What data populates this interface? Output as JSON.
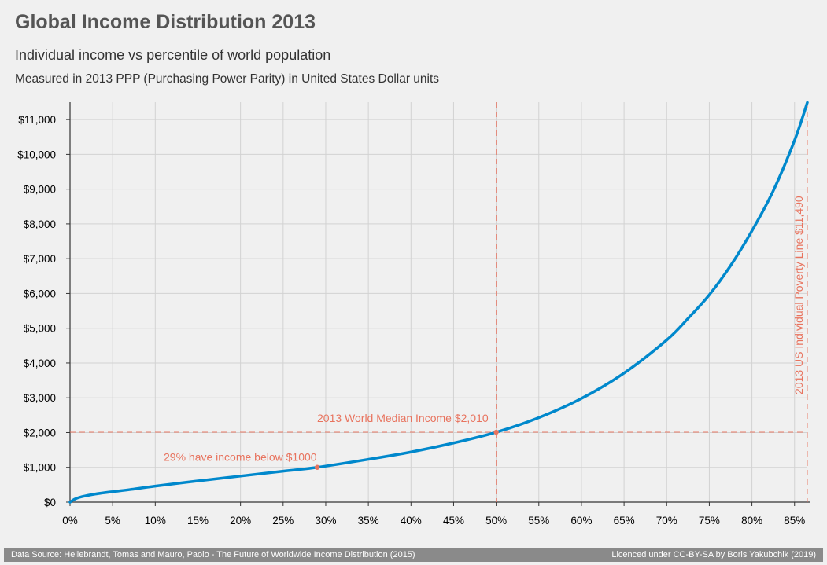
{
  "header": {
    "title": "Global Income Distribution 2013",
    "subtitle": "Individual income vs percentile of world population",
    "subtitle2": "Measured in 2013 PPP (Purchasing Power Parity) in United States Dollar units"
  },
  "footer": {
    "source": "Data Source: Hellebrandt, Tomas and Mauro, Paolo - The Future of Worldwide Income Distribution (2015)",
    "license": "Licenced under CC-BY-SA by Boris Yakubchik (2019)"
  },
  "colors": {
    "line": "#0088cc",
    "annotation": "#e8735e",
    "grid": "#d2d2d2",
    "axis": "#333333"
  },
  "chart_data": {
    "type": "line",
    "xlim": [
      0,
      86.5
    ],
    "ylim": [
      0,
      11500
    ],
    "x_ticks": [
      0,
      5,
      10,
      15,
      20,
      25,
      30,
      35,
      40,
      45,
      50,
      55,
      60,
      65,
      70,
      75,
      80,
      85
    ],
    "x_tick_labels": [
      "0%",
      "5%",
      "10%",
      "15%",
      "20%",
      "25%",
      "30%",
      "35%",
      "40%",
      "45%",
      "50%",
      "55%",
      "60%",
      "65%",
      "70%",
      "75%",
      "80%",
      "85%"
    ],
    "y_ticks": [
      0,
      1000,
      2000,
      3000,
      4000,
      5000,
      6000,
      7000,
      8000,
      9000,
      10000,
      11000
    ],
    "y_tick_labels": [
      "$0",
      "$1,000",
      "$2,000",
      "$3,000",
      "$4,000",
      "$5,000",
      "$6,000",
      "$7,000",
      "$8,000",
      "$9,000",
      "$10,000",
      "$11,000"
    ],
    "grid": true,
    "series": [
      {
        "x": [
          0,
          0.5,
          1,
          2,
          3,
          5,
          7,
          10,
          15,
          20,
          25,
          29,
          35,
          40,
          45,
          50,
          55,
          60,
          65,
          70,
          72.5,
          75,
          77.5,
          80,
          82.5,
          85,
          86.5
        ],
        "y": [
          0,
          80,
          130,
          190,
          235,
          300,
          360,
          460,
          610,
          750,
          890,
          1000,
          1230,
          1440,
          1700,
          2010,
          2430,
          2980,
          3710,
          4660,
          5280,
          5960,
          6800,
          7800,
          8950,
          10400,
          11490
        ]
      }
    ],
    "annotations": {
      "poverty": {
        "x": 86.5,
        "label": "2013 US Individual Poverty Line $11,490"
      },
      "median": {
        "x": 50,
        "y": 2010,
        "label": "2013 World Median Income $2,010"
      },
      "below1000": {
        "x": 29,
        "y": 1000,
        "label": "29% have income below $1000"
      }
    }
  }
}
